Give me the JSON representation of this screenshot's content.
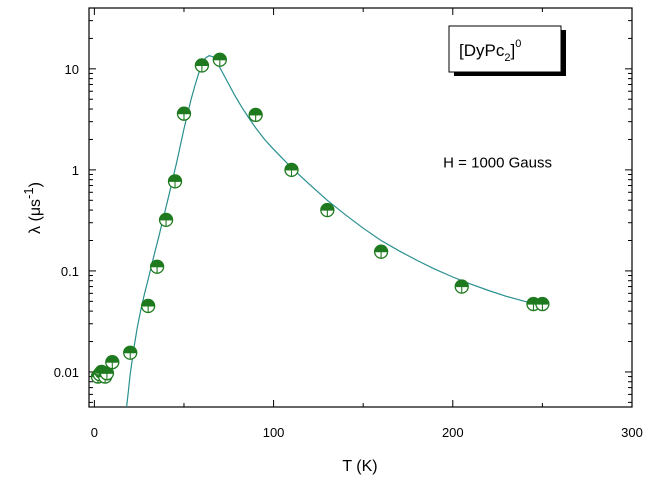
{
  "chart_data": {
    "type": "scatter",
    "title": "",
    "xlabel": "T (K)",
    "ylabel_main": "λ (μs",
    "ylabel_exp": "-1",
    "ylabel_close": ")",
    "xlim": [
      -3,
      300
    ],
    "ylim": [
      0.0045,
      40
    ],
    "yscale": "log",
    "x_ticks": [
      0,
      100,
      200,
      300
    ],
    "x_tick_labels": [
      "0",
      "100",
      "200",
      "300"
    ],
    "y_ticks": [
      0.01,
      0.1,
      1,
      10
    ],
    "y_tick_labels": [
      "0.01",
      "0.1",
      "1",
      "10"
    ],
    "grid": false,
    "colors": {
      "marker": "#1f7a1f",
      "curve": "#2a8f8f"
    },
    "series": [
      {
        "type": "scatter",
        "marker": "half-filled circle with crosshair",
        "x": [
          2,
          3,
          4,
          5,
          6,
          7,
          10,
          20,
          30,
          35,
          40,
          45,
          50,
          60,
          70,
          90,
          110,
          130,
          160,
          205,
          245,
          250
        ],
        "y": [
          0.009,
          0.0095,
          0.01,
          0.0098,
          0.009,
          0.0097,
          0.0125,
          0.0155,
          0.045,
          0.11,
          0.32,
          0.77,
          3.6,
          10.8,
          12.3,
          3.5,
          1.0,
          0.4,
          0.155,
          0.07,
          0.047,
          0.047
        ]
      },
      {
        "type": "line",
        "x": [
          18,
          19,
          20,
          22,
          24,
          26,
          28,
          30,
          32,
          34,
          36,
          38,
          40,
          42,
          44,
          46,
          48,
          50,
          52,
          54,
          56,
          58,
          60,
          62,
          64,
          66,
          68,
          70,
          74,
          78,
          82,
          86,
          90,
          95,
          100,
          110,
          120,
          130,
          140,
          150,
          160,
          170,
          180,
          190,
          200,
          210,
          220,
          230,
          240,
          250
        ],
        "y": [
          0.0045,
          0.0065,
          0.0095,
          0.017,
          0.028,
          0.042,
          0.06,
          0.082,
          0.115,
          0.16,
          0.22,
          0.31,
          0.43,
          0.6,
          0.85,
          1.2,
          1.75,
          2.55,
          3.6,
          5.0,
          6.7,
          8.8,
          11.0,
          12.8,
          13.5,
          13.2,
          12.0,
          10.3,
          7.6,
          5.6,
          4.25,
          3.3,
          2.6,
          2.0,
          1.6,
          1.05,
          0.72,
          0.5,
          0.36,
          0.265,
          0.2,
          0.158,
          0.127,
          0.104,
          0.087,
          0.074,
          0.064,
          0.056,
          0.05,
          0.045
        ]
      }
    ],
    "annotations": [
      {
        "text": "H = 1000 Gauss",
        "x": 225,
        "y": 1.05
      }
    ],
    "legend": {
      "placement": "top-right",
      "text_main": "[DyPc",
      "text_sub": "2",
      "text_close": "]",
      "text_sup": "0"
    }
  }
}
